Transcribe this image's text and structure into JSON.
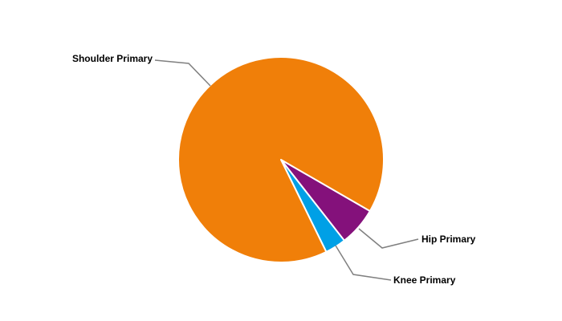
{
  "chart_data": {
    "type": "pie",
    "title": "",
    "legend": "none",
    "start_angle_deg": 120,
    "slices": [
      {
        "label": "Hip Primary",
        "value": 6.1,
        "color": "#84117b"
      },
      {
        "label": "Knee Primary",
        "value": 3.3,
        "color": "#00a0e6"
      },
      {
        "label": "Shoulder Primary",
        "value": 90.6,
        "color": "#f07f09"
      }
    ]
  }
}
